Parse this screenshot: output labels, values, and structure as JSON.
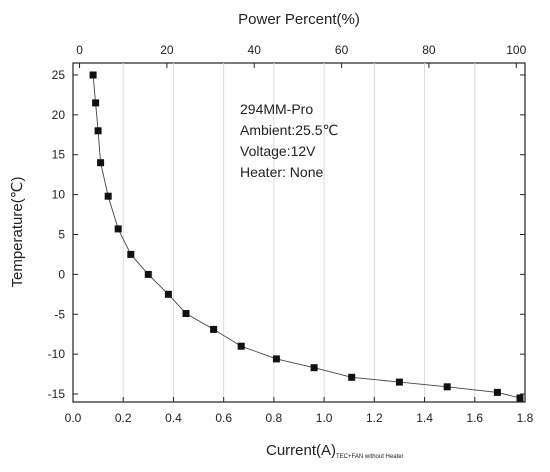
{
  "chart_data": {
    "type": "scatter",
    "title": "",
    "xlabel": "Current(A)",
    "xlabel_suffix": "TEC+FAN without Heater",
    "ylabel": "Temperature(℃)",
    "x2label": "Power Percent(%)",
    "xlim": [
      0.0,
      1.8
    ],
    "ylim": [
      -16,
      26.5
    ],
    "x2lim": [
      -1.5,
      102
    ],
    "xticks": [
      "0.0",
      "0.2",
      "0.4",
      "0.6",
      "0.8",
      "1.0",
      "1.2",
      "1.4",
      "1.6",
      "1.8"
    ],
    "yticks": [
      "25",
      "20",
      "15",
      "10",
      "5",
      "0",
      "-5",
      "-10",
      "-15"
    ],
    "x2ticks": [
      "0",
      "20",
      "40",
      "60",
      "80",
      "100"
    ],
    "grid": "vertical",
    "connecting_line": true,
    "annotations": [
      "294MM-Pro",
      "Ambient:25.5℃",
      "Voltage:12V",
      "Heater: None"
    ],
    "series": [
      {
        "x": [
          0.08,
          0.09,
          0.1,
          0.11,
          0.14,
          0.18,
          0.23,
          0.3,
          0.38,
          0.45,
          0.56,
          0.67,
          0.81,
          0.96,
          1.11,
          1.3,
          1.49,
          1.69,
          1.78
        ],
        "y": [
          25,
          21.5,
          18,
          14,
          9.8,
          5.7,
          2.5,
          0,
          -2.5,
          -4.9,
          -6.9,
          -9,
          -10.6,
          -11.7,
          -12.9,
          -13.5,
          -14.1,
          -14.8,
          -15.5
        ]
      }
    ]
  }
}
